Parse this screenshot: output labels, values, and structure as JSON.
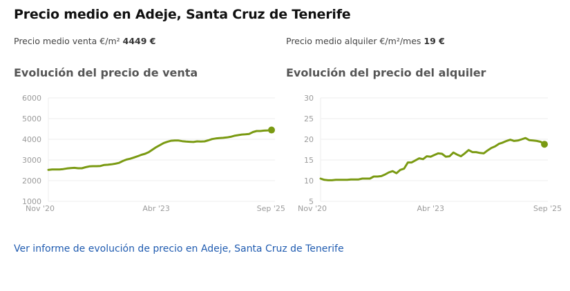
{
  "header": {
    "title": "Precio medio en Adeje, Santa Cruz de Tenerife"
  },
  "summary": {
    "sale_label": "Precio medio venta €/m²",
    "sale_value": "4449 €",
    "rent_label": "Precio medio alquiler €/m²/mes",
    "rent_value": "19 €"
  },
  "link": {
    "label": "Ver informe de evolución de precio en Adeje, Santa Cruz de Tenerife"
  },
  "colors": {
    "line": "#7a9a12",
    "grid": "#eeeeee",
    "link": "#1f5bb0"
  },
  "chart_data": [
    {
      "type": "line",
      "title": "Evolución del precio de venta",
      "xlabel": "",
      "ylabel": "",
      "ylim": [
        1000,
        6000
      ],
      "yticks": [
        6000,
        5000,
        4000,
        3000,
        2000,
        1000
      ],
      "grid": true,
      "xtick_labels": [
        {
          "index": 0,
          "label": "Nov '20"
        },
        {
          "index": 29,
          "label": "Abr '23"
        },
        {
          "index": 58,
          "label": "Sep '25"
        }
      ],
      "series": [
        {
          "name": "Precio medio venta €/m²",
          "values": [
            2520,
            2540,
            2540,
            2540,
            2560,
            2590,
            2610,
            2620,
            2600,
            2600,
            2650,
            2690,
            2700,
            2700,
            2710,
            2760,
            2770,
            2790,
            2820,
            2860,
            2950,
            3020,
            3060,
            3120,
            3180,
            3250,
            3300,
            3380,
            3500,
            3620,
            3720,
            3820,
            3880,
            3930,
            3940,
            3940,
            3910,
            3890,
            3880,
            3870,
            3900,
            3890,
            3900,
            3950,
            4010,
            4040,
            4060,
            4070,
            4090,
            4120,
            4170,
            4200,
            4230,
            4240,
            4260,
            4350,
            4400,
            4400,
            4420,
            4430,
            4449
          ],
          "last_marker": true
        }
      ]
    },
    {
      "type": "line",
      "title": "Evolución del precio del alquiler",
      "xlabel": "",
      "ylabel": "",
      "ylim": [
        5,
        30
      ],
      "yticks": [
        30,
        25,
        20,
        15,
        10,
        5
      ],
      "grid": true,
      "xtick_labels": [
        {
          "index": 0,
          "label": "Nov '20"
        },
        {
          "index": 29,
          "label": "Abr '23"
        },
        {
          "index": 58,
          "label": "Sep '25"
        }
      ],
      "series": [
        {
          "name": "Precio medio alquiler €/m²/mes",
          "values": [
            10.5,
            10.2,
            10.1,
            10.1,
            10.2,
            10.2,
            10.2,
            10.2,
            10.3,
            10.3,
            10.3,
            10.5,
            10.5,
            10.5,
            11.0,
            11.0,
            11.1,
            11.5,
            12.0,
            12.3,
            11.8,
            12.6,
            12.9,
            14.4,
            14.4,
            14.9,
            15.4,
            15.2,
            15.9,
            15.8,
            16.2,
            16.6,
            16.5,
            15.8,
            15.9,
            16.8,
            16.3,
            15.9,
            16.6,
            17.4,
            16.9,
            16.9,
            16.7,
            16.6,
            17.3,
            17.9,
            18.3,
            18.9,
            19.2,
            19.6,
            19.9,
            19.6,
            19.7,
            20.0,
            20.3,
            19.8,
            19.7,
            19.6,
            19.4,
            18.8
          ],
          "last_marker": true
        }
      ]
    }
  ]
}
